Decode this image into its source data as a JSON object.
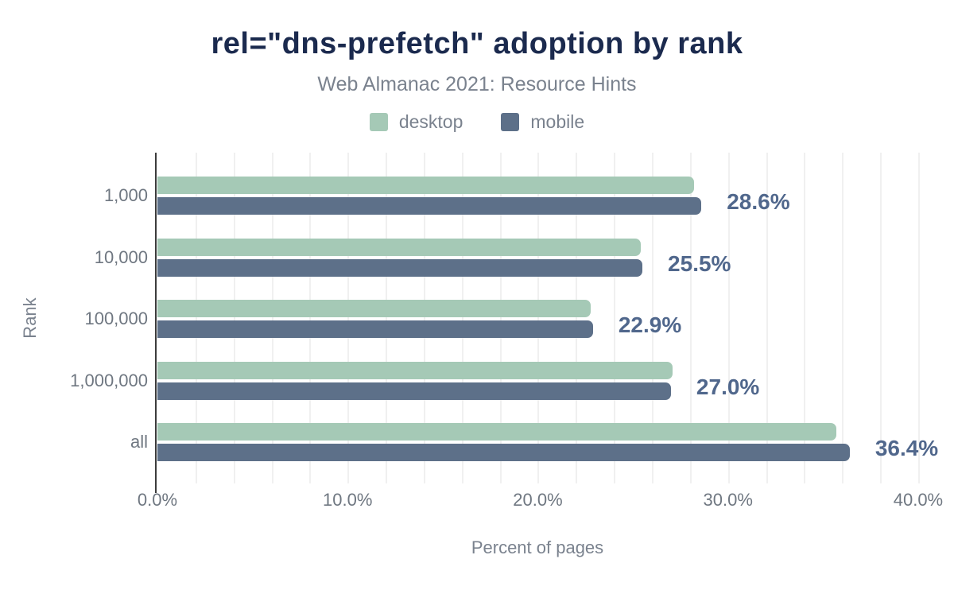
{
  "title": "rel=\"dns-prefetch\" adoption by rank",
  "subtitle": "Web Almanac 2021: Resource Hints",
  "legend": [
    {
      "label": "desktop",
      "color": "#a5c9b6"
    },
    {
      "label": "mobile",
      "color": "#5d7089"
    }
  ],
  "colors": {
    "title": "#1b2a4e",
    "muted_text": "#7a828e",
    "tick_text": "#6f7781",
    "value_label": "#50678c",
    "grid": "#f0f0f0",
    "axis": "#3c3c3c"
  },
  "chart_data": {
    "type": "bar",
    "orientation": "horizontal",
    "title": "rel=\"dns-prefetch\" adoption by rank",
    "subtitle": "Web Almanac 2021: Resource Hints",
    "categories": [
      "1,000",
      "10,000",
      "100,000",
      "1,000,000",
      "all"
    ],
    "series": [
      {
        "name": "desktop",
        "color": "#a5c9b6",
        "values": [
          28.2,
          25.4,
          22.8,
          27.1,
          35.7
        ]
      },
      {
        "name": "mobile",
        "color": "#5d7089",
        "values": [
          28.6,
          25.5,
          22.9,
          27.0,
          36.4
        ]
      }
    ],
    "value_labels": [
      "28.6%",
      "25.5%",
      "22.9%",
      "27.0%",
      "36.4%"
    ],
    "xlabel": "Percent of pages",
    "ylabel": "Rank",
    "x_ticks": [
      {
        "value": 0,
        "label": "0.0%"
      },
      {
        "value": 10,
        "label": "10.0%"
      },
      {
        "value": 20,
        "label": "20.0%"
      },
      {
        "value": 30,
        "label": "30.0%"
      },
      {
        "value": 40,
        "label": "40.0%"
      }
    ],
    "xlim": [
      0,
      41.8
    ],
    "gridline_step": 2,
    "grid": "vertical",
    "legend_position": "top"
  }
}
